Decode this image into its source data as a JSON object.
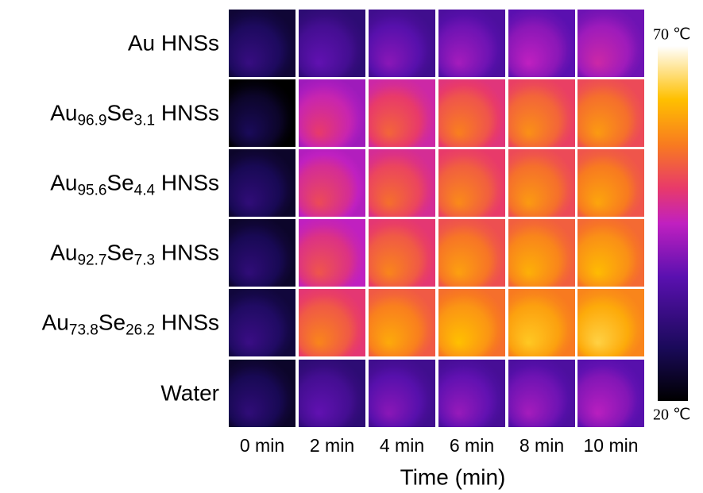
{
  "rows": [
    {
      "label": [
        {
          "text": "Au HNSs"
        }
      ]
    },
    {
      "label": [
        {
          "text": "Au"
        },
        {
          "sub": "96.9"
        },
        {
          "text": "Se"
        },
        {
          "sub": "3.1"
        },
        {
          "text": " HNSs"
        }
      ]
    },
    {
      "label": [
        {
          "text": "Au"
        },
        {
          "sub": "95.6"
        },
        {
          "text": "Se"
        },
        {
          "sub": "4.4"
        },
        {
          "text": " HNSs"
        }
      ]
    },
    {
      "label": [
        {
          "text": "Au"
        },
        {
          "sub": "92.7"
        },
        {
          "text": "Se"
        },
        {
          "sub": "7.3"
        },
        {
          "text": " HNSs"
        }
      ]
    },
    {
      "label": [
        {
          "text": "Au"
        },
        {
          "sub": "73.8"
        },
        {
          "text": "Se"
        },
        {
          "sub": "26.2"
        },
        {
          "text": " HNSs"
        }
      ]
    },
    {
      "label": [
        {
          "text": "Water"
        }
      ]
    }
  ],
  "columns": [
    "0 min",
    "2 min",
    "4 min",
    "6 min",
    "8 min",
    "10 min"
  ],
  "x_axis_title": "Time (min)",
  "colorbar": {
    "max_label": "70 ℃",
    "min_label": "20 ℃"
  }
}
